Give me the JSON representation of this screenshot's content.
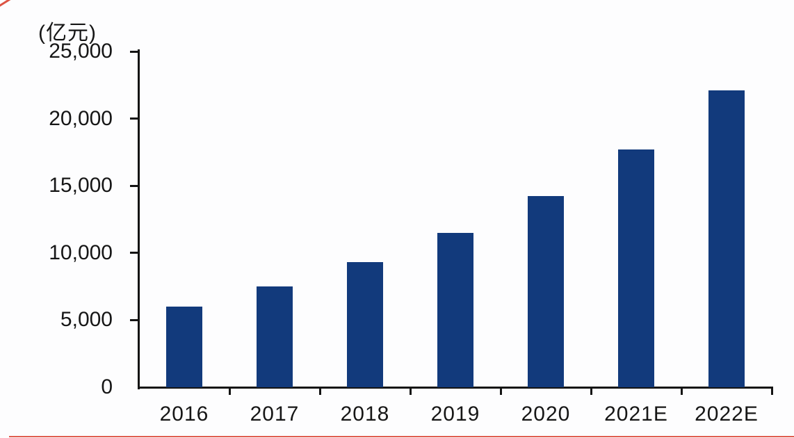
{
  "chart_data": {
    "type": "bar",
    "title": "",
    "unit_label": "(亿元)",
    "categories": [
      "2016",
      "2017",
      "2018",
      "2019",
      "2020",
      "2021E",
      "2022E"
    ],
    "values": [
      6000,
      7500,
      9300,
      11500,
      14250,
      17700,
      22100
    ],
    "xlabel": "",
    "ylabel": "亿元",
    "ylim": [
      0,
      25000
    ],
    "grid": false,
    "legend": "none",
    "y_ticks": [
      {
        "label": "0",
        "value": 0
      },
      {
        "label": "5,000",
        "value": 5000
      },
      {
        "label": "10,000",
        "value": 10000
      },
      {
        "label": "15,000",
        "value": 15000
      },
      {
        "label": "20,000",
        "value": 20000
      },
      {
        "label": "25,000",
        "value": 25000
      }
    ],
    "bar_color": "#123a7c",
    "axis_color": "#141414",
    "text_color": "#161616"
  },
  "decorations": {
    "red_accent_color": "#d9402f"
  }
}
